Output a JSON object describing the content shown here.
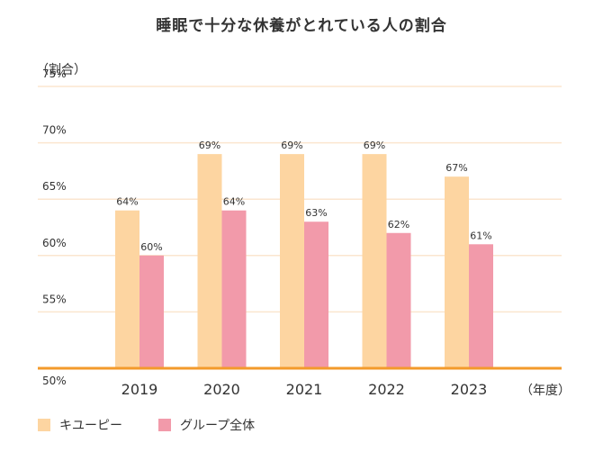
{
  "chart_data": {
    "type": "bar",
    "title": "睡眠で十分な休養がとれている人の割合",
    "ylabel": "（割合）",
    "xlabel": "（年度）",
    "categories": [
      "2019",
      "2020",
      "2021",
      "2022",
      "2023"
    ],
    "series": [
      {
        "name": "キユーピー",
        "values": [
          64,
          69,
          69,
          69,
          67
        ],
        "labels": [
          "64%",
          "69%",
          "69%",
          "69%",
          "67%"
        ],
        "color": "#fdd5a1"
      },
      {
        "name": "グループ全体",
        "values": [
          60,
          64,
          63,
          62,
          61
        ],
        "labels": [
          "60%",
          "64%",
          "63%",
          "62%",
          "61%"
        ],
        "color": "#f29aaa"
      }
    ],
    "ylim": [
      50,
      75
    ],
    "yticks": [
      "50%",
      "55%",
      "60%",
      "65%",
      "70%",
      "75%"
    ],
    "grid": true,
    "legend_position": "bottom-left",
    "colors": {
      "grid": "#fbe6cf",
      "baseline": "#f39a2b"
    }
  }
}
